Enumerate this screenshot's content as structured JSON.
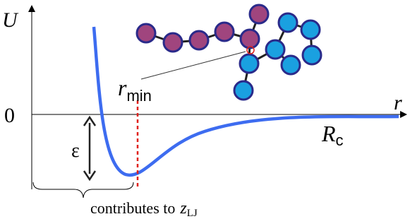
{
  "labels": {
    "energy_axis": "U",
    "distance_axis": "r",
    "zero": "0",
    "r_min": {
      "symbol": "r",
      "subscript": "min"
    },
    "cutoff": {
      "symbol": "R",
      "subscript": "c"
    },
    "well_depth": "ε",
    "caption": {
      "text": "contributes to",
      "symbol": "z",
      "subscript": "LJ"
    }
  }
}
